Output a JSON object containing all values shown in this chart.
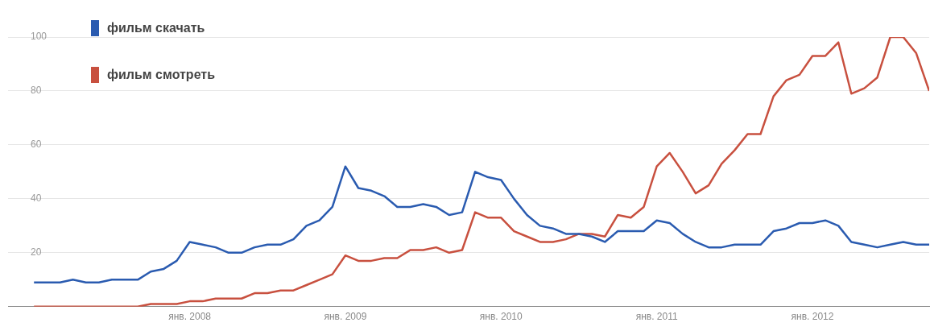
{
  "chart_data": {
    "type": "line",
    "x": [
      "2007-01",
      "2007-02",
      "2007-03",
      "2007-04",
      "2007-05",
      "2007-06",
      "2007-07",
      "2007-08",
      "2007-09",
      "2007-10",
      "2007-11",
      "2007-12",
      "2008-01",
      "2008-02",
      "2008-03",
      "2008-04",
      "2008-05",
      "2008-06",
      "2008-07",
      "2008-08",
      "2008-09",
      "2008-10",
      "2008-11",
      "2008-12",
      "2009-01",
      "2009-02",
      "2009-03",
      "2009-04",
      "2009-05",
      "2009-06",
      "2009-07",
      "2009-08",
      "2009-09",
      "2009-10",
      "2009-11",
      "2009-12",
      "2010-01",
      "2010-02",
      "2010-03",
      "2010-04",
      "2010-05",
      "2010-06",
      "2010-07",
      "2010-08",
      "2010-09",
      "2010-10",
      "2010-11",
      "2010-12",
      "2011-01",
      "2011-02",
      "2011-03",
      "2011-04",
      "2011-05",
      "2011-06",
      "2011-07",
      "2011-08",
      "2011-09",
      "2011-10",
      "2011-11",
      "2011-12",
      "2012-01",
      "2012-02",
      "2012-03",
      "2012-04",
      "2012-05",
      "2012-06",
      "2012-07",
      "2012-08",
      "2012-09",
      "2012-10"
    ],
    "series": [
      {
        "name": "фильм скачать",
        "color": "#2a5bb0",
        "values": [
          9,
          9,
          9,
          10,
          9,
          9,
          10,
          10,
          10,
          13,
          14,
          17,
          24,
          23,
          22,
          20,
          20,
          22,
          23,
          23,
          25,
          30,
          32,
          37,
          52,
          44,
          43,
          41,
          37,
          37,
          38,
          37,
          34,
          35,
          50,
          48,
          47,
          40,
          34,
          30,
          29,
          27,
          27,
          26,
          24,
          28,
          28,
          28,
          32,
          31,
          27,
          24,
          22,
          22,
          23,
          23,
          23,
          28,
          29,
          31,
          31,
          32,
          30,
          24,
          23,
          22,
          23,
          24,
          23,
          23
        ]
      },
      {
        "name": "фильм смотреть",
        "color": "#c8503f",
        "values": [
          0,
          0,
          0,
          0,
          0,
          0,
          0,
          0,
          0,
          1,
          1,
          1,
          2,
          2,
          3,
          3,
          3,
          5,
          5,
          6,
          6,
          8,
          10,
          12,
          19,
          17,
          17,
          18,
          18,
          21,
          21,
          22,
          20,
          21,
          35,
          33,
          33,
          28,
          26,
          24,
          24,
          25,
          27,
          27,
          26,
          34,
          33,
          37,
          52,
          57,
          50,
          42,
          45,
          53,
          58,
          64,
          64,
          78,
          84,
          86,
          93,
          93,
          98,
          79,
          81,
          85,
          100,
          100,
          94,
          80
        ]
      }
    ],
    "xlim": [
      "2006-11",
      "2012-10"
    ],
    "xticks": [
      {
        "value": "2008-01",
        "label": "янв. 2008"
      },
      {
        "value": "2009-01",
        "label": "янв. 2009"
      },
      {
        "value": "2010-01",
        "label": "янв. 2010"
      },
      {
        "value": "2011-01",
        "label": "янв. 2011"
      },
      {
        "value": "2012-01",
        "label": "янв. 2012"
      }
    ],
    "ylim": [
      0,
      100
    ],
    "yticks": [
      {
        "value": 0,
        "label": null
      },
      20,
      40,
      60,
      80,
      100
    ],
    "grid": "y",
    "legend": "top left"
  }
}
